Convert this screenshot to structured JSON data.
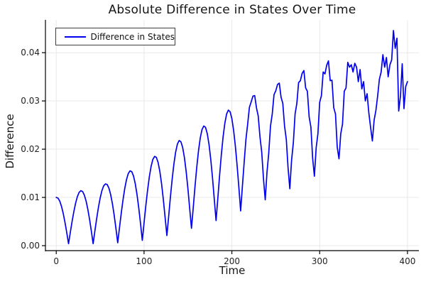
{
  "title": "Absolute Difference in States Over Time",
  "legend": {
    "label": "Difference in States"
  },
  "colors": {
    "line": "#0000ee",
    "grid": "#e9e9e9",
    "spine": "#000000",
    "tick_text": "#222222",
    "background": "#ffffff"
  },
  "axes": {
    "x": {
      "label": "Time",
      "ticks": [
        {
          "v": 0,
          "label": "0"
        },
        {
          "v": 100,
          "label": "100"
        },
        {
          "v": 200,
          "label": "200"
        },
        {
          "v": 300,
          "label": "300"
        },
        {
          "v": 400,
          "label": "400"
        }
      ]
    },
    "y": {
      "label": "Difference",
      "ticks": [
        {
          "v": 0,
          "label": "0.00"
        },
        {
          "v": 0.01,
          "label": "0.01"
        },
        {
          "v": 0.02,
          "label": "0.02"
        },
        {
          "v": 0.03,
          "label": "0.03"
        },
        {
          "v": 0.04,
          "label": "0.04"
        }
      ]
    }
  },
  "chart_data": {
    "type": "line",
    "title": "Absolute Difference in States Over Time",
    "xlabel": "Time",
    "ylabel": "Difference",
    "xlim": [
      -12.3,
      413
    ],
    "ylim": [
      -0.00103,
      0.0468
    ],
    "grid": true,
    "legend_position": "top-left",
    "x_start": 0,
    "x_step": 2,
    "series": [
      {
        "name": "Difference in States",
        "color": "#0000ee",
        "y": [
          0.01,
          0.00986,
          0.00923,
          0.00814,
          0.00664,
          0.00478,
          0.00267,
          0.0004,
          0.00272,
          0.00496,
          0.00701,
          0.00877,
          0.01013,
          0.01103,
          0.0114,
          0.01122,
          0.01049,
          0.00924,
          0.00751,
          0.00539,
          0.00299,
          0.0004,
          0.00303,
          0.00556,
          0.00789,
          0.00986,
          0.01139,
          0.01239,
          0.0128,
          0.01268,
          0.01192,
          0.01057,
          0.00866,
          0.00628,
          0.00355,
          0.0006,
          0.00369,
          0.00668,
          0.00944,
          0.01182,
          0.01368,
          0.01494,
          0.0155,
          0.01534,
          0.01444,
          0.01283,
          0.01057,
          0.00776,
          0.00457,
          0.0011,
          0.00472,
          0.00824,
          0.01147,
          0.01424,
          0.01641,
          0.01787,
          0.0185,
          0.01831,
          0.01724,
          0.01537,
          0.01275,
          0.0095,
          0.00581,
          0.0021,
          0.00601,
          0.01006,
          0.01377,
          0.01694,
          0.01942,
          0.02107,
          0.0218,
          0.02153,
          0.02033,
          0.01821,
          0.01531,
          0.01171,
          0.00764,
          0.0036,
          0.00781,
          0.0122,
          0.01622,
          0.01965,
          0.02231,
          0.02407,
          0.0248,
          0.02453,
          0.02322,
          0.02096,
          0.01783,
          0.01397,
          0.00958,
          0.0052,
          0.00976,
          0.01449,
          0.01883,
          0.02252,
          0.02538,
          0.02728,
          0.0281,
          0.02776,
          0.02633,
          0.0239,
          0.0206,
          0.01656,
          0.01203,
          0.0072,
          0.01234,
          0.01725,
          0.022,
          0.0252,
          0.0287,
          0.0298,
          0.031,
          0.0311,
          0.0286,
          0.0269,
          0.0226,
          0.0194,
          0.0139,
          0.0095,
          0.0152,
          0.0192,
          0.0248,
          0.0273,
          0.0313,
          0.0321,
          0.0334,
          0.0337,
          0.0308,
          0.0295,
          0.0248,
          0.022,
          0.0161,
          0.0118,
          0.0177,
          0.0213,
          0.0273,
          0.0295,
          0.0338,
          0.0342,
          0.0357,
          0.0363,
          0.0327,
          0.032,
          0.0267,
          0.0246,
          0.0181,
          0.0144,
          0.0203,
          0.0232,
          0.0297,
          0.0311,
          0.036,
          0.0356,
          0.0374,
          0.0383,
          0.0342,
          0.0343,
          0.0286,
          0.0273,
          0.0204,
          0.018,
          0.0232,
          0.0252,
          0.032,
          0.0327,
          0.038,
          0.037,
          0.0375,
          0.036,
          0.0378,
          0.037,
          0.034,
          0.0365,
          0.0325,
          0.034,
          0.03,
          0.0315,
          0.0275,
          0.0245,
          0.0217,
          0.026,
          0.028,
          0.031,
          0.0345,
          0.036,
          0.0396,
          0.037,
          0.039,
          0.035,
          0.0375,
          0.0385,
          0.0446,
          0.0409,
          0.043,
          0.0279,
          0.031,
          0.0377,
          0.0284,
          0.033,
          0.034
        ]
      }
    ]
  }
}
